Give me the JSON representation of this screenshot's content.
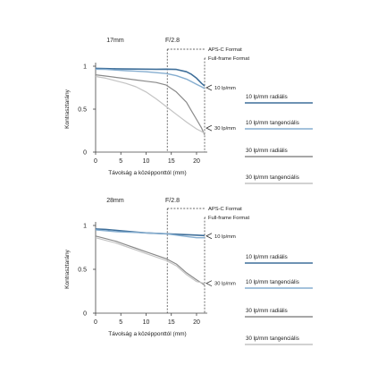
{
  "chart_data": [
    {
      "type": "line",
      "header": {
        "focal": "17mm",
        "aperture": "F/2.8"
      },
      "xlabel": "Távolság a középponttól (mm)",
      "ylabel": "Kontrasztarány",
      "xticks": [
        "0",
        "5",
        "10",
        "15",
        "20"
      ],
      "yticks": [
        "1",
        "0.5",
        "0"
      ],
      "xlim": [
        0,
        21.6
      ],
      "ylim": [
        0,
        1
      ],
      "grid": false,
      "format_lines": [
        {
          "label": "APS-C Format",
          "x": 14.2
        },
        {
          "label": "Full-frame Format",
          "x": 21.6
        }
      ],
      "annotations": [
        {
          "label": "10 lp/mm",
          "at": 0.75
        },
        {
          "label": "30 lp/mm",
          "at": 0.28
        }
      ],
      "series": [
        {
          "style": "10-radial",
          "x": [
            0,
            2,
            4,
            6,
            8,
            10,
            12,
            14,
            16,
            18,
            19,
            20,
            21,
            21.6
          ],
          "y": [
            0.975,
            0.972,
            0.97,
            0.968,
            0.967,
            0.966,
            0.965,
            0.966,
            0.962,
            0.935,
            0.905,
            0.86,
            0.8,
            0.77
          ]
        },
        {
          "style": "10-tangential",
          "x": [
            0,
            2,
            4,
            6,
            8,
            10,
            12,
            14,
            16,
            18,
            19,
            20,
            21,
            21.6
          ],
          "y": [
            0.965,
            0.962,
            0.955,
            0.948,
            0.942,
            0.935,
            0.925,
            0.915,
            0.89,
            0.85,
            0.82,
            0.79,
            0.76,
            0.74
          ]
        },
        {
          "style": "30-radial",
          "x": [
            0,
            2,
            4,
            6,
            8,
            10,
            12,
            14,
            16,
            18,
            19,
            20,
            21,
            21.6
          ],
          "y": [
            0.9,
            0.885,
            0.87,
            0.855,
            0.84,
            0.825,
            0.81,
            0.78,
            0.7,
            0.58,
            0.48,
            0.38,
            0.28,
            0.2
          ]
        },
        {
          "style": "30-tangential",
          "x": [
            0,
            2,
            4,
            6,
            8,
            10,
            12,
            14,
            16,
            18,
            19,
            20,
            21,
            21.6
          ],
          "y": [
            0.88,
            0.86,
            0.83,
            0.8,
            0.76,
            0.7,
            0.62,
            0.53,
            0.44,
            0.35,
            0.31,
            0.27,
            0.24,
            0.22
          ]
        }
      ]
    },
    {
      "type": "line",
      "header": {
        "focal": "28mm",
        "aperture": "F/2.8"
      },
      "xlabel": "Távolság a középponttól (mm)",
      "ylabel": "Kontrasztarány",
      "xticks": [
        "0",
        "5",
        "10",
        "15",
        "20"
      ],
      "yticks": [
        "1",
        "0.5",
        "0"
      ],
      "xlim": [
        0,
        21.6
      ],
      "ylim": [
        0,
        1
      ],
      "grid": false,
      "format_lines": [
        {
          "label": "APS-C Format",
          "x": 14.2
        },
        {
          "label": "Full-frame Format",
          "x": 21.6
        }
      ],
      "annotations": [
        {
          "label": "10 lp/mm",
          "at": 0.88
        },
        {
          "label": "30 lp/mm",
          "at": 0.34
        }
      ],
      "series": [
        {
          "style": "10-radial",
          "x": [
            0,
            2,
            4,
            6,
            8,
            10,
            12,
            14,
            16,
            18,
            20,
            21.6
          ],
          "y": [
            0.96,
            0.955,
            0.945,
            0.935,
            0.925,
            0.915,
            0.91,
            0.905,
            0.9,
            0.895,
            0.89,
            0.885
          ]
        },
        {
          "style": "10-tangential",
          "x": [
            0,
            2,
            4,
            6,
            8,
            10,
            12,
            14,
            16,
            18,
            20,
            21.6
          ],
          "y": [
            0.95,
            0.94,
            0.93,
            0.925,
            0.92,
            0.915,
            0.91,
            0.905,
            0.89,
            0.875,
            0.86,
            0.86
          ]
        },
        {
          "style": "30-radial",
          "x": [
            0,
            2,
            4,
            6,
            8,
            10,
            12,
            14,
            16,
            18,
            20,
            21.6
          ],
          "y": [
            0.88,
            0.85,
            0.82,
            0.78,
            0.74,
            0.7,
            0.66,
            0.62,
            0.56,
            0.46,
            0.38,
            0.32
          ]
        },
        {
          "style": "30-tangential",
          "x": [
            0,
            2,
            4,
            6,
            8,
            10,
            12,
            14,
            16,
            18,
            20,
            21.6
          ],
          "y": [
            0.86,
            0.83,
            0.8,
            0.76,
            0.72,
            0.68,
            0.64,
            0.6,
            0.54,
            0.44,
            0.36,
            0.34
          ]
        }
      ]
    }
  ],
  "legends": [
    [
      {
        "style": "10-radial",
        "text": "10 lp/mm  radiális"
      },
      {
        "style": "10-tangential",
        "text": "10 lp/mm  tangenciális"
      },
      {
        "style": "30-radial",
        "text": "30 lp/mm  radiális"
      },
      {
        "style": "30-tangential",
        "text": "30 lp/mm  tangenciális"
      }
    ],
    [
      {
        "style": "10-radial",
        "text": "10 lp/mm  radiális"
      },
      {
        "style": "10-tangential",
        "text": "10 lp/mm  tangenciális"
      },
      {
        "style": "30-radial",
        "text": "30 lp/mm  radiális"
      },
      {
        "style": "30-tangential",
        "text": "30 lp/mm  tangenciális"
      }
    ]
  ],
  "colors": {
    "10-radial": "#3f6f9a",
    "10-tangential": "#86aed0",
    "30-radial": "#8a8a8a",
    "30-tangential": "#c4c4c4",
    "axis": "#444444",
    "format_line": "#333333"
  }
}
